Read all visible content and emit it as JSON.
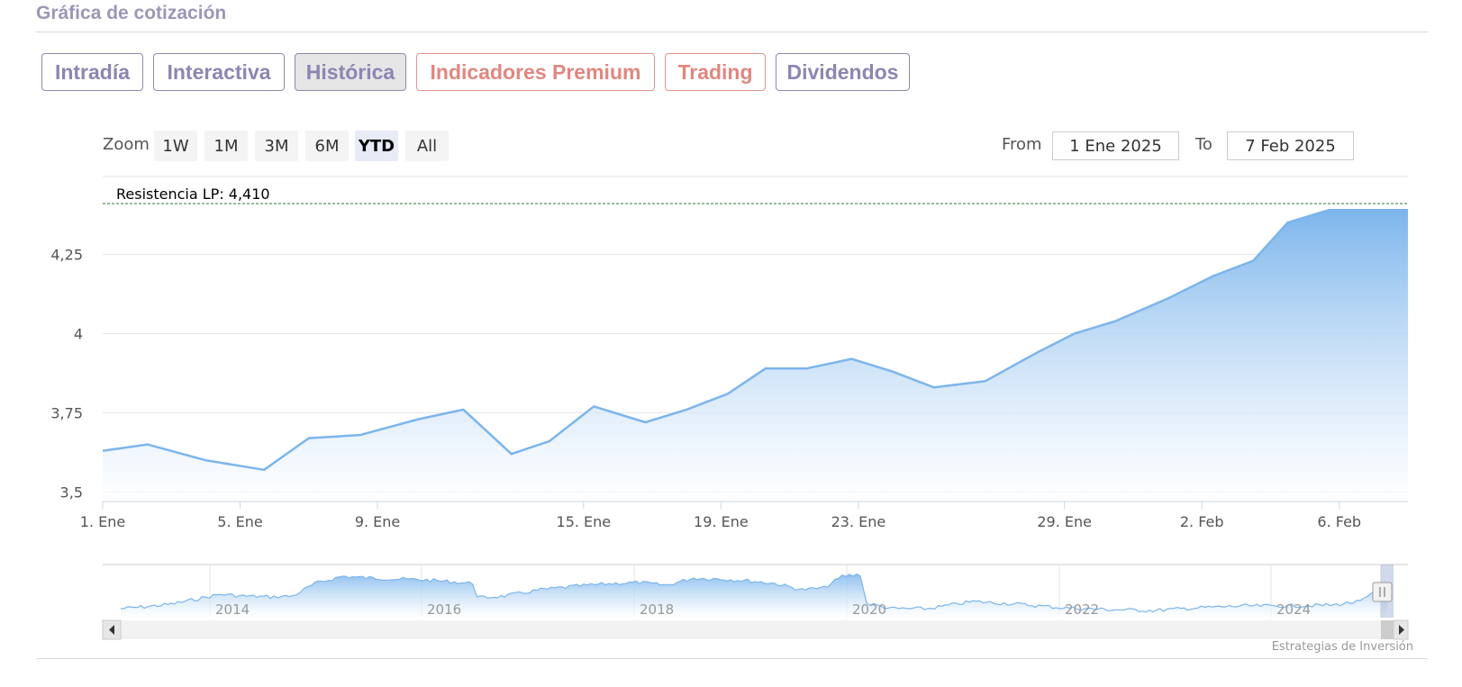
{
  "section": {
    "title": "Gráfica de cotización"
  },
  "tabs": [
    {
      "label": "Intradía",
      "active": false,
      "style": "purple"
    },
    {
      "label": "Interactiva",
      "active": false,
      "style": "purple"
    },
    {
      "label": "Histórica",
      "active": true,
      "style": "purple"
    },
    {
      "label": "Indicadores Premium",
      "active": false,
      "style": "red"
    },
    {
      "label": "Trading",
      "active": false,
      "style": "red"
    },
    {
      "label": "Dividendos",
      "active": false,
      "style": "purple"
    }
  ],
  "range_selector": {
    "zoom_label": "Zoom",
    "buttons": [
      "1W",
      "1M",
      "3M",
      "6M",
      "YTD",
      "All"
    ],
    "selected": "YTD",
    "from_label": "From",
    "from_value": "1 Ene 2025",
    "to_label": "To",
    "to_value": "7 Feb 2025"
  },
  "chart_data": {
    "type": "area",
    "x_label_ticks": [
      "1. Ene",
      "5. Ene",
      "9. Ene",
      "15. Ene",
      "19. Ene",
      "23. Ene",
      "29. Ene",
      "2. Feb",
      "6. Feb"
    ],
    "x_tick_days": [
      1,
      5,
      9,
      15,
      19,
      23,
      29,
      33,
      37
    ],
    "x_range_days": [
      1,
      39
    ],
    "y_ticks": [
      "3,5",
      "3,75",
      "4",
      "4,25"
    ],
    "y_tick_values": [
      3.5,
      3.75,
      4,
      4.25
    ],
    "ylim": [
      3.47,
      4.47
    ],
    "series": [
      {
        "day": [
          1,
          2.3,
          4,
          5.7,
          7,
          8.5,
          10.2,
          11.5,
          12.9,
          14,
          15.3,
          16.8,
          18,
          19.2,
          20.3,
          21.5,
          22.8,
          24,
          25.2,
          26.7,
          28.2,
          29.3,
          30.5,
          32,
          33.3,
          34.5,
          35.5,
          36.7,
          38,
          39
        ],
        "price": [
          3.63,
          3.65,
          3.6,
          3.57,
          3.67,
          3.68,
          3.73,
          3.76,
          3.62,
          3.66,
          3.77,
          3.72,
          3.76,
          3.81,
          3.89,
          3.89,
          3.92,
          3.88,
          3.83,
          3.85,
          3.94,
          4.0,
          4.04,
          4.11,
          4.18,
          4.23,
          4.35,
          4.39,
          4.39,
          4.39
        ]
      }
    ],
    "plot_line": {
      "label": "Resistencia LP: 4,410",
      "value": 4.41,
      "color": "#2e7d32"
    },
    "navigator": {
      "year_labels": [
        "2014",
        "2016",
        "2018",
        "2020",
        "2022",
        "2024"
      ]
    },
    "colors": {
      "line": "#7cb5ec",
      "fill_top": "#7cb5ec",
      "fill_bottom": "#ffffff",
      "grid": "#e6e6e6"
    }
  },
  "credit": "Estrategias de Inversión"
}
